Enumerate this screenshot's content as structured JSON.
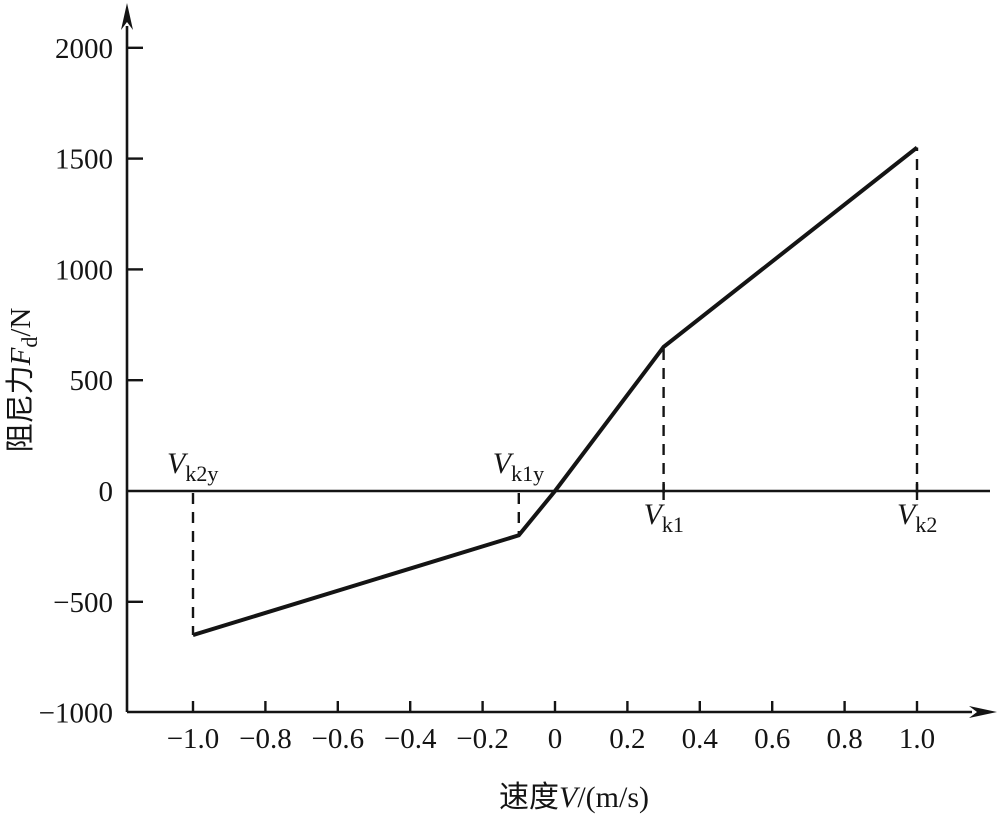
{
  "figure": {
    "background": "#ffffff",
    "ink_color": "#141414",
    "description": "Damper force versus velocity piecewise-linear characteristic curve"
  },
  "chart_data": {
    "type": "line",
    "title": "",
    "xlabel": {
      "prefix": "速度",
      "variable": "V",
      "unit": "/(m/s)"
    },
    "ylabel": {
      "prefix": "阻尼力",
      "variable": "F",
      "variable_sub": "d",
      "unit": "/N"
    },
    "xlim": [
      -1.2,
      1.2
    ],
    "ylim": [
      -1000,
      2000
    ],
    "grid": false,
    "legend": null,
    "x_ticks": [
      {
        "value": -1.0,
        "label": "−1.0"
      },
      {
        "value": -0.8,
        "label": "−0.8"
      },
      {
        "value": -0.6,
        "label": "−0.6"
      },
      {
        "value": -0.4,
        "label": "−0.4"
      },
      {
        "value": -0.2,
        "label": "−0.2"
      },
      {
        "value": 0,
        "label": "0"
      },
      {
        "value": 0.2,
        "label": "0.2"
      },
      {
        "value": 0.4,
        "label": "0.4"
      },
      {
        "value": 0.6,
        "label": "0.6"
      },
      {
        "value": 0.8,
        "label": "0.8"
      },
      {
        "value": 1.0,
        "label": "1.0"
      }
    ],
    "y_ticks": [
      {
        "value": 2000,
        "label": "2000"
      },
      {
        "value": 1500,
        "label": "1500"
      },
      {
        "value": 1000,
        "label": "1000"
      },
      {
        "value": 500,
        "label": "500"
      },
      {
        "value": 0,
        "label": "0"
      },
      {
        "value": -500,
        "label": "−500"
      },
      {
        "value": -1000,
        "label": "−1000"
      }
    ],
    "series": [
      {
        "name": "damping-force-curve",
        "points": [
          {
            "v": -1.0,
            "f": -650
          },
          {
            "v": -0.1,
            "f": -200
          },
          {
            "v": 0.0,
            "f": 0
          },
          {
            "v": 0.3,
            "f": 650
          },
          {
            "v": 1.0,
            "f": 1550
          }
        ]
      }
    ],
    "annotations": [
      {
        "id": "vk2y",
        "variable": "V",
        "sub": "k2y",
        "v": -1.0,
        "f_at": -650,
        "side": "above",
        "tick_across_axis": false
      },
      {
        "id": "vk1y",
        "variable": "V",
        "sub": "k1y",
        "v": -0.1,
        "f_at": -200,
        "side": "above",
        "tick_across_axis": false
      },
      {
        "id": "vk1",
        "variable": "V",
        "sub": "k1",
        "v": 0.3,
        "f_at": 650,
        "side": "below",
        "tick_across_axis": true
      },
      {
        "id": "vk2",
        "variable": "V",
        "sub": "k2",
        "v": 1.0,
        "f_at": 1550,
        "side": "below",
        "tick_across_axis": true
      }
    ]
  }
}
